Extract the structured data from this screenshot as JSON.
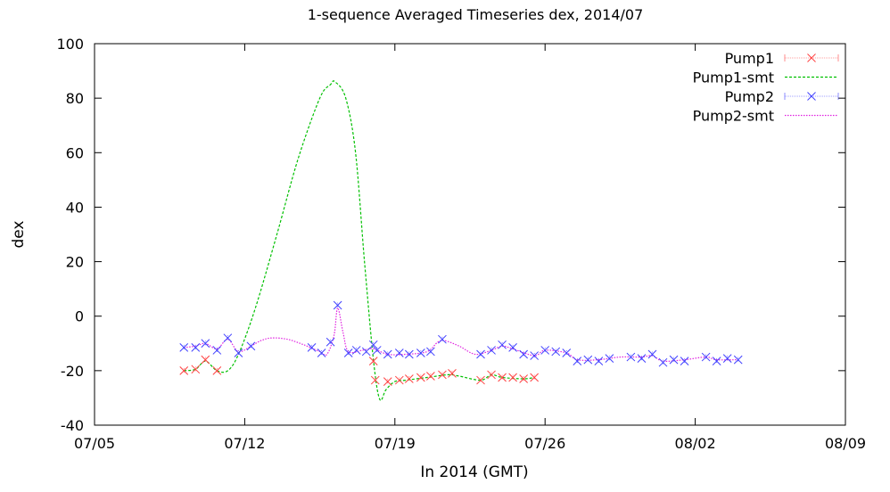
{
  "chart_data": {
    "type": "line",
    "title": "1-sequence Averaged Timeseries dex, 2014/07",
    "xlabel": "In 2014 (GMT)",
    "ylabel": "dex",
    "ylim": [
      -40,
      100
    ],
    "yticks": [
      -40,
      -20,
      0,
      20,
      40,
      60,
      80,
      100
    ],
    "xlim": [
      "2014-07-05",
      "2014-08-09"
    ],
    "xticks": [
      {
        "date": "2014-07-05",
        "label": "07/05"
      },
      {
        "date": "2014-07-12",
        "label": "07/12"
      },
      {
        "date": "2014-07-19",
        "label": "07/19"
      },
      {
        "date": "2014-07-26",
        "label": "07/26"
      },
      {
        "date": "2014-08-02",
        "label": "08/02"
      },
      {
        "date": "2014-08-09",
        "label": "08/09"
      }
    ],
    "grid": false,
    "legend_position": "top-right",
    "series": [
      {
        "name": "Pump1",
        "style": "points-errorbars",
        "marker": "x",
        "color": "#ff4040",
        "points": [
          [
            "2014-07-09 04:00",
            -20.0
          ],
          [
            "2014-07-09 17:00",
            -19.5
          ],
          [
            "2014-07-10 04:00",
            -16.0
          ],
          [
            "2014-07-10 17:00",
            -20.0
          ],
          [
            "2014-07-18 00:00",
            -16.5
          ],
          [
            "2014-07-18 02:00",
            -23.5
          ],
          [
            "2014-07-18 16:00",
            -24.0
          ],
          [
            "2014-07-19 05:00",
            -23.5
          ],
          [
            "2014-07-19 16:00",
            -23.0
          ],
          [
            "2014-07-20 05:00",
            -22.5
          ],
          [
            "2014-07-20 16:00",
            -22.0
          ],
          [
            "2014-07-21 05:00",
            -21.5
          ],
          [
            "2014-07-21 16:00",
            -21.0
          ],
          [
            "2014-07-23 00:00",
            -23.5
          ],
          [
            "2014-07-23 12:00",
            -21.5
          ],
          [
            "2014-07-24 00:00",
            -22.5
          ],
          [
            "2014-07-24 12:00",
            -22.5
          ],
          [
            "2014-07-25 00:00",
            -23.0
          ],
          [
            "2014-07-25 12:00",
            -22.5
          ]
        ]
      },
      {
        "name": "Pump1-smt",
        "style": "dashed-line",
        "color": "#00c000",
        "points": [
          [
            "2014-07-09 04:00",
            -20.0
          ],
          [
            "2014-07-09 17:00",
            -19.5
          ],
          [
            "2014-07-10 04:00",
            -16.5
          ],
          [
            "2014-07-10 17:00",
            -20.0
          ],
          [
            "2014-07-11 05:00",
            -20.0
          ],
          [
            "2014-07-11 17:00",
            -14.0
          ],
          [
            "2014-07-12 12:00",
            3.0
          ],
          [
            "2014-07-13 12:00",
            30.0
          ],
          [
            "2014-07-14 12:00",
            58.0
          ],
          [
            "2014-07-15 12:00",
            80.0
          ],
          [
            "2014-07-16 00:00",
            85.0
          ],
          [
            "2014-07-16 05:00",
            86.0
          ],
          [
            "2014-07-16 17:00",
            80.0
          ],
          [
            "2014-07-17 04:00",
            60.0
          ],
          [
            "2014-07-17 14:00",
            20.0
          ],
          [
            "2014-07-18 00:00",
            -16.0
          ],
          [
            "2014-07-18 07:00",
            -30.5
          ],
          [
            "2014-07-18 14:00",
            -27.0
          ],
          [
            "2014-07-19 00:00",
            -24.0
          ],
          [
            "2014-07-19 12:00",
            -23.5
          ],
          [
            "2014-07-20 12:00",
            -22.5
          ],
          [
            "2014-07-21 12:00",
            -21.5
          ],
          [
            "2014-07-22 00:00",
            -22.0
          ],
          [
            "2014-07-23 00:00",
            -23.5
          ],
          [
            "2014-07-23 12:00",
            -21.5
          ],
          [
            "2014-07-24 00:00",
            -22.5
          ],
          [
            "2014-07-25 00:00",
            -23.0
          ],
          [
            "2014-07-25 12:00",
            -22.5
          ]
        ]
      },
      {
        "name": "Pump2",
        "style": "points-errorbars",
        "marker": "x",
        "color": "#4040ff",
        "points": [
          [
            "2014-07-09 04:00",
            -11.5
          ],
          [
            "2014-07-09 17:00",
            -11.5
          ],
          [
            "2014-07-10 04:00",
            -10.0
          ],
          [
            "2014-07-10 17:00",
            -12.5
          ],
          [
            "2014-07-11 05:00",
            -8.0
          ],
          [
            "2014-07-11 17:00",
            -13.5
          ],
          [
            "2014-07-12 07:00",
            -11.0
          ],
          [
            "2014-07-15 03:00",
            -11.5
          ],
          [
            "2014-07-15 14:00",
            -13.5
          ],
          [
            "2014-07-16 00:00",
            -9.5
          ],
          [
            "2014-07-16 08:00",
            4.0
          ],
          [
            "2014-07-16 20:00",
            -13.5
          ],
          [
            "2014-07-17 05:00",
            -12.5
          ],
          [
            "2014-07-17 16:00",
            -13.0
          ],
          [
            "2014-07-18 00:00",
            -10.5
          ],
          [
            "2014-07-18 04:00",
            -12.5
          ],
          [
            "2014-07-18 16:00",
            -14.0
          ],
          [
            "2014-07-19 05:00",
            -13.5
          ],
          [
            "2014-07-19 16:00",
            -14.0
          ],
          [
            "2014-07-20 05:00",
            -13.5
          ],
          [
            "2014-07-20 16:00",
            -13.0
          ],
          [
            "2014-07-21 05:00",
            -8.5
          ],
          [
            "2014-07-23 00:00",
            -14.0
          ],
          [
            "2014-07-23 12:00",
            -12.5
          ],
          [
            "2014-07-24 00:00",
            -10.5
          ],
          [
            "2014-07-24 12:00",
            -11.5
          ],
          [
            "2014-07-25 00:00",
            -14.0
          ],
          [
            "2014-07-25 12:00",
            -14.5
          ],
          [
            "2014-07-26 00:00",
            -12.5
          ],
          [
            "2014-07-26 12:00",
            -13.0
          ],
          [
            "2014-07-27 00:00",
            -13.5
          ],
          [
            "2014-07-27 12:00",
            -16.5
          ],
          [
            "2014-07-28 00:00",
            -16.0
          ],
          [
            "2014-07-28 12:00",
            -16.5
          ],
          [
            "2014-07-29 00:00",
            -15.5
          ],
          [
            "2014-07-30 00:00",
            -15.0
          ],
          [
            "2014-07-30 12:00",
            -15.5
          ],
          [
            "2014-07-31 00:00",
            -14.0
          ],
          [
            "2014-07-31 12:00",
            -17.0
          ],
          [
            "2014-08-01 00:00",
            -16.0
          ],
          [
            "2014-08-01 12:00",
            -16.5
          ],
          [
            "2014-08-02 12:00",
            -15.0
          ],
          [
            "2014-08-03 00:00",
            -16.5
          ],
          [
            "2014-08-03 12:00",
            -15.5
          ],
          [
            "2014-08-04 00:00",
            -16.0
          ]
        ]
      },
      {
        "name": "Pump2-smt",
        "style": "dotted-line",
        "color": "#e020e0",
        "points": [
          [
            "2014-07-09 04:00",
            -11.5
          ],
          [
            "2014-07-09 17:00",
            -11.0
          ],
          [
            "2014-07-10 04:00",
            -10.0
          ],
          [
            "2014-07-10 17:00",
            -12.0
          ],
          [
            "2014-07-11 05:00",
            -8.5
          ],
          [
            "2014-07-11 17:00",
            -13.0
          ],
          [
            "2014-07-12 07:00",
            -11.0
          ],
          [
            "2014-07-12 18:00",
            -9.0
          ],
          [
            "2014-07-13 06:00",
            -8.0
          ],
          [
            "2014-07-14 00:00",
            -8.5
          ],
          [
            "2014-07-14 18:00",
            -10.5
          ],
          [
            "2014-07-15 12:00",
            -13.0
          ],
          [
            "2014-07-15 20:00",
            -14.0
          ],
          [
            "2014-07-16 04:00",
            -7.0
          ],
          [
            "2014-07-16 08:00",
            3.0
          ],
          [
            "2014-07-16 14:00",
            -6.0
          ],
          [
            "2014-07-16 20:00",
            -13.0
          ],
          [
            "2014-07-17 12:00",
            -12.5
          ],
          [
            "2014-07-18 00:00",
            -12.0
          ],
          [
            "2014-07-18 16:00",
            -14.0
          ],
          [
            "2014-07-19 12:00",
            -14.0
          ],
          [
            "2014-07-20 12:00",
            -13.0
          ],
          [
            "2014-07-21 00:00",
            -9.5
          ],
          [
            "2014-07-21 08:00",
            -9.0
          ],
          [
            "2014-07-22 00:00",
            -11.0
          ],
          [
            "2014-07-22 18:00",
            -14.0
          ],
          [
            "2014-07-23 12:00",
            -12.5
          ],
          [
            "2014-07-24 00:00",
            -11.0
          ],
          [
            "2014-07-24 12:00",
            -12.0
          ],
          [
            "2014-07-25 12:00",
            -14.5
          ],
          [
            "2014-07-26 00:00",
            -12.5
          ],
          [
            "2014-07-27 00:00",
            -13.5
          ],
          [
            "2014-07-27 12:00",
            -16.0
          ],
          [
            "2014-07-28 12:00",
            -16.0
          ],
          [
            "2014-07-29 12:00",
            -15.0
          ],
          [
            "2014-07-30 12:00",
            -15.0
          ],
          [
            "2014-07-31 00:00",
            -14.5
          ],
          [
            "2014-07-31 12:00",
            -16.5
          ],
          [
            "2014-08-01 12:00",
            -16.0
          ],
          [
            "2014-08-02 12:00",
            -15.0
          ],
          [
            "2014-08-03 00:00",
            -16.0
          ],
          [
            "2014-08-04 00:00",
            -16.0
          ]
        ]
      }
    ]
  }
}
